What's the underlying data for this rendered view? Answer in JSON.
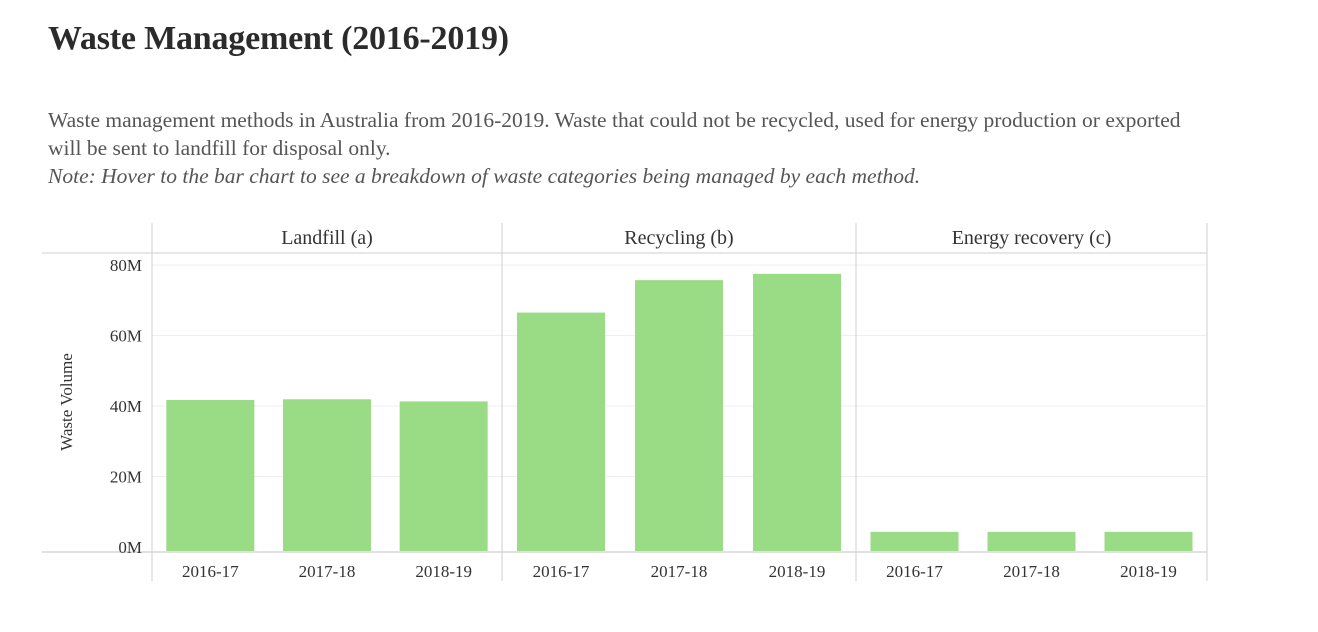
{
  "page": {
    "title": "Waste Management (2016-2019)",
    "description": "Waste management methods in Australia from 2016-2019. Waste that could not be recycled, used for energy production or exported will be sent to landfill for disposal only.",
    "note": "Note: Hover to the bar chart to see a breakdown of waste categories being managed by each method."
  },
  "chart_data": {
    "type": "bar",
    "ylabel": "Waste Volume",
    "ylim": [
      0,
      80000000
    ],
    "yticks": [
      {
        "value": 0,
        "label": "0M"
      },
      {
        "value": 20000000,
        "label": "20M"
      },
      {
        "value": 40000000,
        "label": "40M"
      },
      {
        "value": 60000000,
        "label": "60M"
      },
      {
        "value": 80000000,
        "label": "80M"
      }
    ],
    "grid": true,
    "bar_color": "#9ADB85",
    "panels": [
      {
        "name": "Landfill (a)",
        "categories": [
          "2016-17",
          "2017-18",
          "2018-19"
        ],
        "values": [
          41700000,
          41900000,
          41300000
        ]
      },
      {
        "name": "Recycling (b)",
        "categories": [
          "2016-17",
          "2017-18",
          "2018-19"
        ],
        "values": [
          66500000,
          75700000,
          77500000
        ]
      },
      {
        "name": "Energy recovery (c)",
        "categories": [
          "2016-17",
          "2017-18",
          "2018-19"
        ],
        "values": [
          4300000,
          4300000,
          4300000
        ]
      }
    ]
  }
}
